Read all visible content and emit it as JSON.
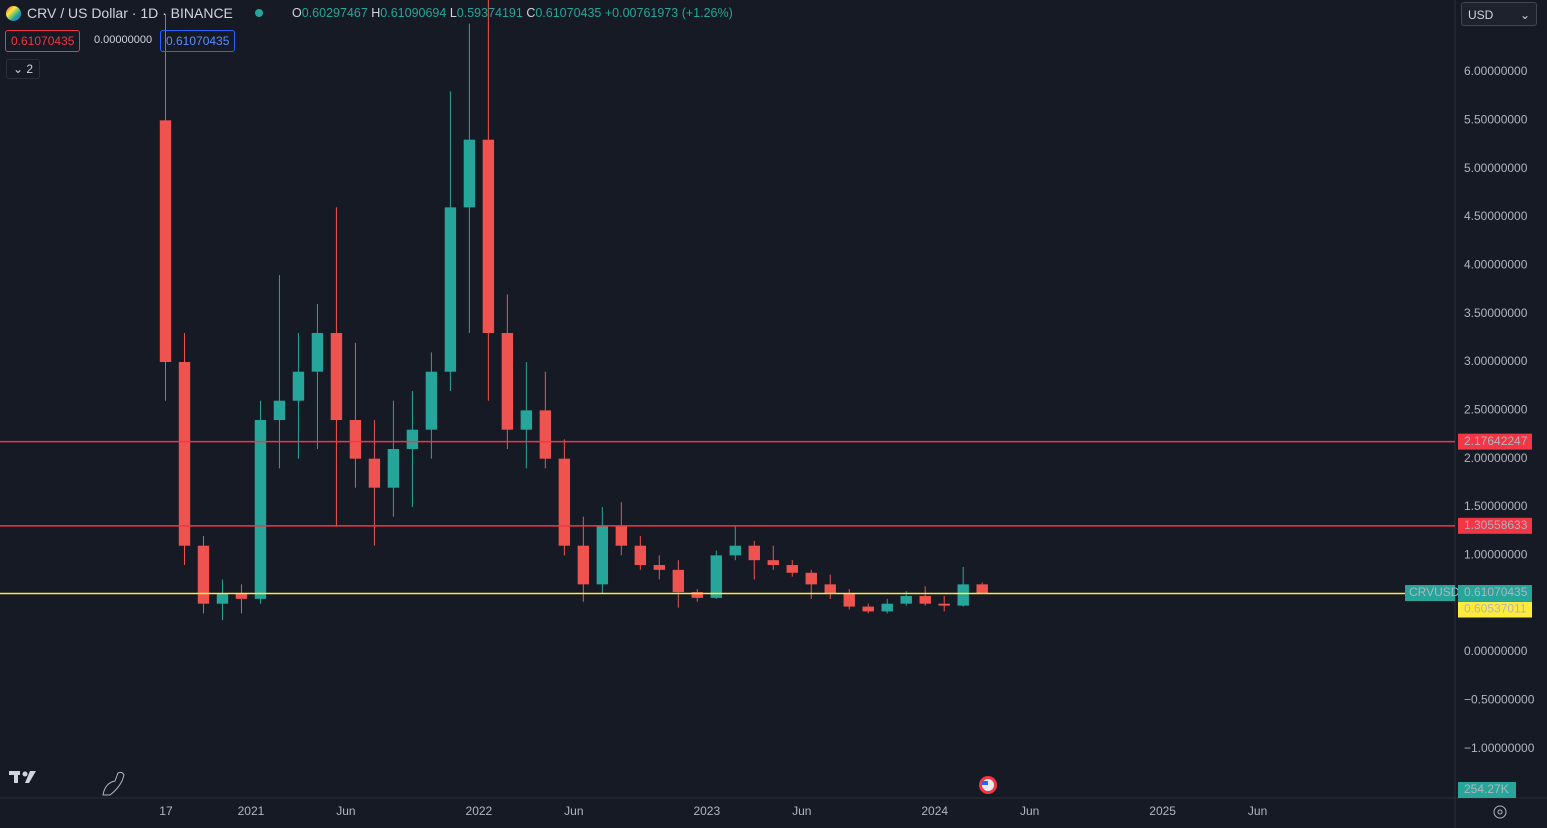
{
  "header": {
    "symbol": "CRV / US Dollar · 1D · BINANCE",
    "o_label": "O",
    "open": 0.60297467,
    "h_label": "H",
    "high": 0.61090694,
    "l_label": "L",
    "low": 0.59374191,
    "c_label": "C",
    "close": 0.61070435,
    "change": "+0.00761973 (+1.26%)",
    "sell_price": "0.61070435",
    "spread": "0.00000000",
    "buy_price": "0.61070435",
    "indicators": "2",
    "currency": "USD"
  },
  "chart_data": {
    "type": "candlestick",
    "up_color": "#26a69a",
    "down_color": "#ef5350",
    "x": [
      "2020-08",
      "2020-09",
      "2020-10",
      "2020-11",
      "2020-12",
      "2021-01",
      "2021-02",
      "2021-03",
      "2021-04",
      "2021-05",
      "2021-06",
      "2021-07",
      "2021-08",
      "2021-09",
      "2021-10",
      "2021-11",
      "2021-12",
      "2022-01",
      "2022-02",
      "2022-03",
      "2022-04",
      "2022-05",
      "2022-06",
      "2022-07",
      "2022-08",
      "2022-09",
      "2022-10",
      "2022-11",
      "2022-12",
      "2023-01",
      "2023-02",
      "2023-03",
      "2023-04",
      "2023-05",
      "2023-06",
      "2023-07",
      "2023-08",
      "2023-09",
      "2023-10",
      "2023-11",
      "2023-12",
      "2024-01",
      "2024-02",
      "2024-03"
    ],
    "open": [
      5.5,
      3.0,
      1.1,
      0.5,
      0.6,
      0.55,
      2.4,
      2.6,
      2.9,
      3.3,
      2.4,
      2.0,
      1.7,
      2.1,
      2.3,
      2.9,
      4.6,
      5.3,
      3.3,
      2.3,
      2.5,
      2.0,
      1.1,
      0.7,
      1.3,
      1.1,
      0.9,
      0.85,
      0.62,
      0.56,
      1.0,
      1.1,
      0.95,
      0.9,
      0.82,
      0.7,
      0.6,
      0.47,
      0.42,
      0.5,
      0.58,
      0.5,
      0.48,
      0.7
    ],
    "high": [
      6.6,
      3.3,
      1.2,
      0.75,
      0.7,
      2.6,
      3.9,
      3.3,
      3.6,
      4.6,
      3.2,
      2.4,
      2.6,
      2.7,
      3.1,
      5.8,
      6.5,
      6.8,
      3.7,
      3.0,
      2.9,
      2.2,
      1.4,
      1.5,
      1.55,
      1.2,
      1.0,
      0.95,
      0.65,
      1.05,
      1.3,
      1.15,
      1.1,
      0.95,
      0.85,
      0.8,
      0.65,
      0.5,
      0.55,
      0.63,
      0.68,
      0.58,
      0.88,
      0.72
    ],
    "low": [
      2.6,
      0.9,
      0.4,
      0.33,
      0.4,
      0.5,
      1.9,
      2.0,
      2.1,
      1.3,
      1.7,
      1.1,
      1.4,
      1.5,
      2.0,
      2.7,
      3.3,
      2.6,
      2.1,
      1.9,
      1.9,
      1.0,
      0.52,
      0.6,
      1.0,
      0.85,
      0.75,
      0.46,
      0.52,
      0.55,
      0.95,
      0.75,
      0.85,
      0.78,
      0.55,
      0.55,
      0.44,
      0.4,
      0.4,
      0.48,
      0.48,
      0.42,
      0.47,
      0.6
    ],
    "close": [
      3.0,
      1.1,
      0.5,
      0.6,
      0.55,
      2.4,
      2.6,
      2.9,
      3.3,
      2.4,
      2.0,
      1.7,
      2.1,
      2.3,
      2.9,
      4.6,
      5.3,
      3.3,
      2.3,
      2.5,
      2.0,
      1.1,
      0.7,
      1.3,
      1.1,
      0.9,
      0.85,
      0.62,
      0.56,
      1.0,
      1.1,
      0.95,
      0.9,
      0.82,
      0.7,
      0.6,
      0.47,
      0.42,
      0.5,
      0.58,
      0.5,
      0.48,
      0.7,
      0.61070435
    ],
    "xlim": [
      "2019-11-25",
      "2026-04-13"
    ],
    "xticks": [
      {
        "value": "2020-08-17",
        "label": "17"
      },
      {
        "value": "2021-01-01",
        "label": "2021"
      },
      {
        "value": "2021-06-01",
        "label": "Jun"
      },
      {
        "value": "2022-01-01",
        "label": "2022"
      },
      {
        "value": "2022-06-01",
        "label": "Jun"
      },
      {
        "value": "2023-01-01",
        "label": "2023"
      },
      {
        "value": "2023-06-01",
        "label": "Jun"
      },
      {
        "value": "2024-01-01",
        "label": "2024"
      },
      {
        "value": "2024-06-01",
        "label": "Jun"
      },
      {
        "value": "2025-01-01",
        "label": "2025"
      },
      {
        "value": "2025-06-01",
        "label": "Jun"
      }
    ],
    "ylim": [
      -1.51,
      6.745
    ],
    "yticks": [
      {
        "value": -1,
        "label": "−1.00000000"
      },
      {
        "value": -0.5,
        "label": "−0.50000000"
      },
      {
        "value": 0,
        "label": "0.00000000"
      },
      {
        "value": 1,
        "label": "1.00000000"
      },
      {
        "value": 1.5,
        "label": "1.50000000"
      },
      {
        "value": 2,
        "label": "2.00000000"
      },
      {
        "value": 2.5,
        "label": "2.50000000"
      },
      {
        "value": 3,
        "label": "3.00000000"
      },
      {
        "value": 3.5,
        "label": "3.50000000"
      },
      {
        "value": 4,
        "label": "4.00000000"
      },
      {
        "value": 4.5,
        "label": "4.50000000"
      },
      {
        "value": 5,
        "label": "5.00000000"
      },
      {
        "value": 5.5,
        "label": "5.50000000"
      },
      {
        "value": 6,
        "label": "6.00000000"
      }
    ],
    "hlines": [
      {
        "value": 2.17642247,
        "color": "#f23645"
      },
      {
        "value": 1.30558633,
        "color": "#f23645"
      },
      {
        "value": 0.60537011,
        "color": "#ffeb3b"
      }
    ],
    "last_price": {
      "name": "CRVUSD",
      "value": 0.61070435,
      "color": "#26a69a"
    },
    "volume_label": "254.27K"
  }
}
